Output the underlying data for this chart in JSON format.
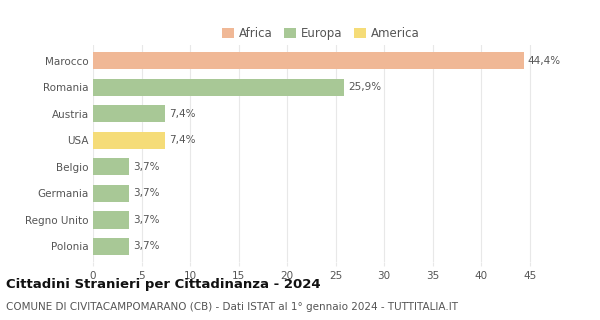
{
  "categories": [
    "Marocco",
    "Romania",
    "Austria",
    "USA",
    "Belgio",
    "Germania",
    "Regno Unito",
    "Polonia"
  ],
  "values": [
    44.4,
    25.9,
    7.4,
    7.4,
    3.7,
    3.7,
    3.7,
    3.7
  ],
  "labels": [
    "44,4%",
    "25,9%",
    "7,4%",
    "7,4%",
    "3,7%",
    "3,7%",
    "3,7%",
    "3,7%"
  ],
  "colors": [
    "#F0B896",
    "#A8C896",
    "#A8C896",
    "#F5DC78",
    "#A8C896",
    "#A8C896",
    "#A8C896",
    "#A8C896"
  ],
  "legend": [
    {
      "label": "Africa",
      "color": "#F0B896"
    },
    {
      "label": "Europa",
      "color": "#A8C896"
    },
    {
      "label": "America",
      "color": "#F5DC78"
    }
  ],
  "xlim": [
    0,
    47
  ],
  "xticks": [
    0,
    5,
    10,
    15,
    20,
    25,
    30,
    35,
    40,
    45
  ],
  "title": "Cittadini Stranieri per Cittadinanza - 2024",
  "subtitle": "COMUNE DI CIVITACAMPOMARANO (CB) - Dati ISTAT al 1° gennaio 2024 - TUTTITALIA.IT",
  "background_color": "#ffffff",
  "grid_color": "#e8e8e8",
  "bar_height": 0.65,
  "title_fontsize": 9.5,
  "subtitle_fontsize": 7.5,
  "label_fontsize": 7.5,
  "tick_fontsize": 7.5,
  "legend_fontsize": 8.5
}
